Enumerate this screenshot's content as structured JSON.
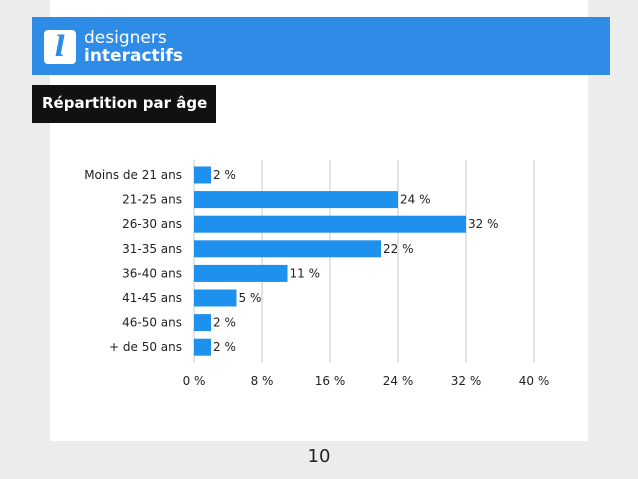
{
  "header": {
    "logo_mark": "l",
    "logo_line1": "designers",
    "logo_line2": "interactifs",
    "brand_color": "#2f8ce6"
  },
  "title": "Répartition par âge",
  "page_number": "10",
  "chart_data": {
    "type": "bar",
    "orientation": "horizontal",
    "categories": [
      "Moins de 21 ans",
      "21-25 ans",
      "26-30 ans",
      "31-35 ans",
      "36-40 ans",
      "41-45 ans",
      "46-50 ans",
      "+ de 50 ans"
    ],
    "values": [
      2,
      24,
      32,
      22,
      11,
      5,
      2,
      2
    ],
    "value_labels": [
      "2 %",
      "24 %",
      "32 %",
      "22 %",
      "11 %",
      "5 %",
      "2 %",
      "2 %"
    ],
    "xlim": [
      0,
      40
    ],
    "xticks": [
      0,
      8,
      16,
      24,
      32,
      40
    ],
    "xtick_labels": [
      "0 %",
      "8 %",
      "16 %",
      "24 %",
      "32 %",
      "40 %"
    ],
    "grid": "vertical",
    "bar_color": "#1e90ee"
  }
}
